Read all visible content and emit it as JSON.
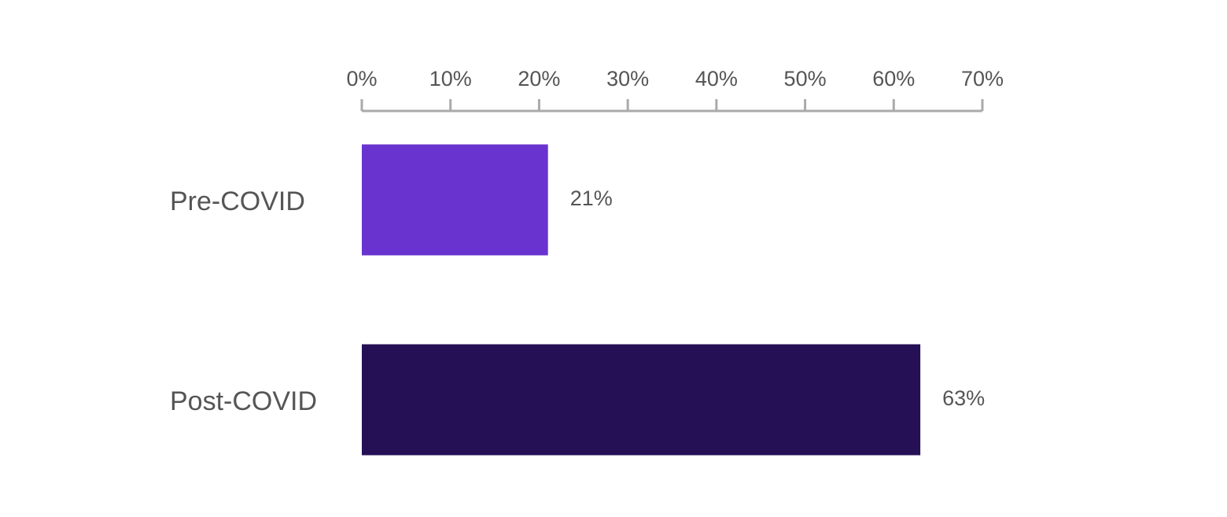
{
  "chart_data": {
    "type": "bar",
    "orientation": "horizontal",
    "categories": [
      "Pre-COVID",
      "Post-COVID"
    ],
    "values": [
      21,
      63
    ],
    "value_labels": [
      "21%",
      "63%"
    ],
    "colors": [
      "#6933cf",
      "#251056"
    ],
    "xlim": [
      0,
      70
    ],
    "xticks": [
      {
        "value": 0,
        "label": "0%"
      },
      {
        "value": 10,
        "label": "10%"
      },
      {
        "value": 20,
        "label": "20%"
      },
      {
        "value": 30,
        "label": "30%"
      },
      {
        "value": 40,
        "label": "40%"
      },
      {
        "value": 50,
        "label": "50%"
      },
      {
        "value": 60,
        "label": "60%"
      },
      {
        "value": 70,
        "label": "70%"
      }
    ]
  }
}
